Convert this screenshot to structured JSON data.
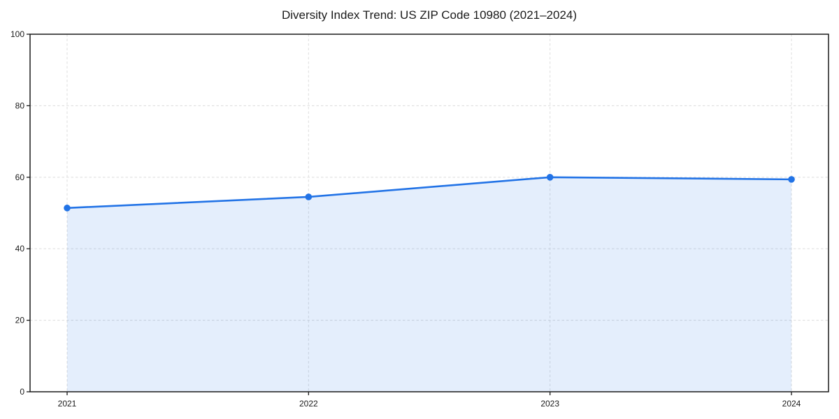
{
  "chart_data": {
    "type": "area",
    "title": "Diversity Index Trend: US ZIP Code 10980 (2021–2024)",
    "x": [
      "2021",
      "2022",
      "2023",
      "2024"
    ],
    "series": [
      {
        "name": "Diversity Index",
        "values": [
          51.4,
          54.5,
          60.0,
          59.4
        ]
      }
    ],
    "xlabel": "",
    "ylabel": "",
    "ylim": [
      0,
      100
    ],
    "yticks": [
      0,
      20,
      40,
      60,
      80,
      100
    ],
    "grid": true,
    "grid_style": "dashed",
    "legend": false,
    "colors": {
      "line": "#2273e6",
      "marker": "#2273e6",
      "fill": "#2273e6",
      "fill_opacity": "0.12",
      "grid": "#e0e0e0",
      "axis": "#1a1a1a",
      "text": "#1a1a1a",
      "background": "#ffffff"
    }
  }
}
